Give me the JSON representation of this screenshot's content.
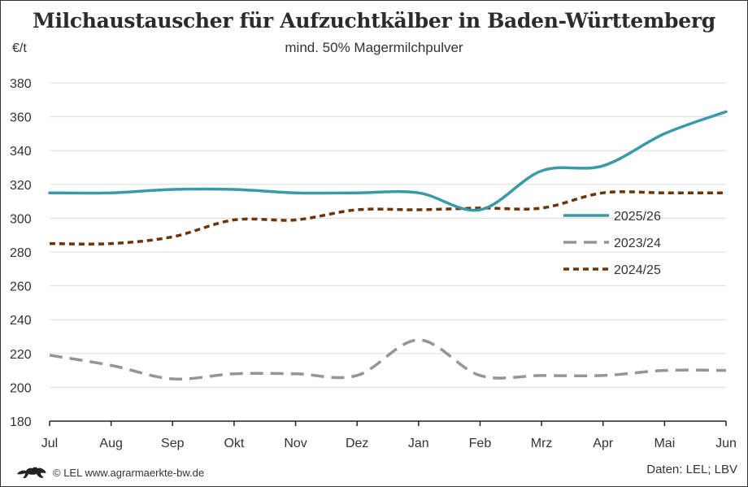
{
  "chart_data": {
    "type": "line",
    "title": "Milchaustauscher für Aufzuchtkälber in Baden-Württemberg",
    "subtitle": "mind. 50% Magermilchpulver",
    "ylabel": "€/t",
    "xlabel": "",
    "categories": [
      "Jul",
      "Aug",
      "Sep",
      "Okt",
      "Nov",
      "Dez",
      "Jan",
      "Feb",
      "Mrz",
      "Apr",
      "Mai",
      "Jun"
    ],
    "ylim": [
      180,
      380
    ],
    "yticks": [
      180,
      200,
      220,
      240,
      260,
      280,
      300,
      320,
      340,
      360,
      380
    ],
    "grid": true,
    "legend_position": "right",
    "series": [
      {
        "name": "2025/26",
        "color": "#3a9aa8",
        "dash": "solid",
        "values": [
          315,
          315,
          317,
          317,
          315,
          315,
          315,
          305,
          328,
          331,
          350,
          363
        ]
      },
      {
        "name": "2023/24",
        "color": "#959595",
        "dash": "dashed",
        "values": [
          219,
          213,
          205,
          208,
          208,
          207,
          228,
          207,
          207,
          207,
          210,
          210
        ]
      },
      {
        "name": "2024/25",
        "color": "#6b3306",
        "dash": "dotted",
        "values": [
          285,
          285,
          289,
          299,
          299,
          305,
          305,
          306,
          306,
          315,
          315,
          315
        ]
      }
    ]
  },
  "footer": {
    "copyright": "© LEL www.agrarmaerkte-bw.de",
    "source": "Daten: LEL; LBV"
  },
  "icons": {
    "logo": "baden-wuerttemberg-lion-logo-icon"
  }
}
